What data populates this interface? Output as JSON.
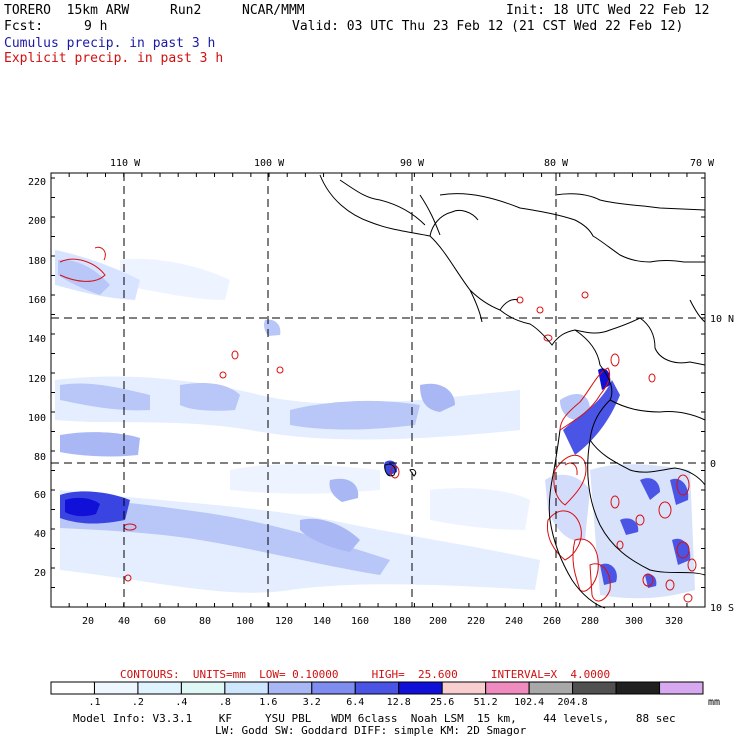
{
  "header": {
    "model": "TORERO  15km ARW",
    "run": "Run2",
    "org": "NCAR/MMM",
    "init": "Init: 18 UTC Wed 22 Feb 12",
    "fcst_label": "Fcst:",
    "fcst_value": "9 h",
    "valid": "Valid: 03 UTC Thu 23 Feb 12 (21 CST Wed 22 Feb 12)",
    "legend_cumulus": "Cumulus precip. in past 3 h",
    "legend_explicit": "Explicit precip. in past 3 h"
  },
  "map": {
    "top_lon_labels": [
      "110 W",
      "100 W",
      "90 W",
      "80 W",
      "70 W"
    ],
    "right_lat_labels": [
      "10 N",
      "0",
      "10 S"
    ],
    "y_grid_labels": [
      "220",
      "200",
      "180",
      "160",
      "140",
      "120",
      "100",
      "80",
      "60",
      "40",
      "20"
    ],
    "x_grid_labels": [
      "20",
      "40",
      "60",
      "80",
      "100",
      "120",
      "140",
      "160",
      "180",
      "200",
      "220",
      "240",
      "260",
      "280",
      "300",
      "320"
    ]
  },
  "contours": {
    "text": "CONTOURS:  UNITS=mm  LOW= 0.10000     HIGH=  25.600     INTERVAL=X  4.0000"
  },
  "colorbar": {
    "colors": [
      "#ffffff",
      "#eef6ff",
      "#e0f4ff",
      "#dff8f6",
      "#cfe6ff",
      "#a9b8f5",
      "#7f8df0",
      "#4a55e6",
      "#1010d8",
      "#f7cfcf",
      "#f08bc0",
      "#a8a8a8",
      "#505050",
      "#202020",
      "#d8a8f0"
    ],
    "labels": [
      ".1",
      ".2",
      ".4",
      ".8",
      "1.6",
      "3.2",
      "6.4",
      "12.8",
      "25.6",
      "51.2",
      "102.4",
      "204.8"
    ],
    "unit": "mm"
  },
  "footer": {
    "line1": "Model Info: V3.3.1    KF     YSU PBL   WDM 6class  Noah LSM  15 km,    44 levels,    88 sec",
    "line2": "LW: Godd SW: Goddard DIFF: simple KM: 2D Smagor"
  }
}
